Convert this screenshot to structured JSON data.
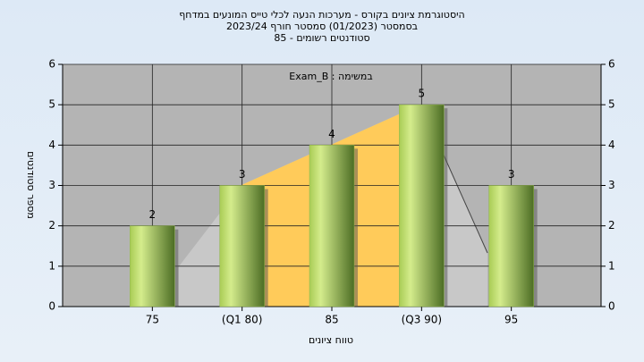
{
  "chart_data": {
    "type": "bar",
    "title": "היסטוגרמת ציונים בקורס - מערכות הנעה לכלי טייס המונעים במדחף",
    "subtitle": "בסמסטר  (01/2023)  סמסטר חורף  2023/24",
    "subtitle2": "סטודנטים רשומים - 85",
    "annotation": "במשימה : Exam_B",
    "x_label": "טווח ציונים",
    "y_label": "מספר סטודנטים",
    "categories": [
      "75",
      "(Q1 80)",
      "85",
      "(Q3 90)",
      "95"
    ],
    "values": [
      2,
      3,
      4,
      5,
      3
    ],
    "color": "#8fb548",
    "ylim": [
      0,
      6
    ],
    "yticks": [
      0,
      1,
      2,
      3,
      4,
      5,
      6
    ],
    "y2lim": [
      0,
      6
    ],
    "y2ticks": [
      0,
      1,
      2,
      3,
      4,
      5,
      6
    ],
    "grid": true
  }
}
